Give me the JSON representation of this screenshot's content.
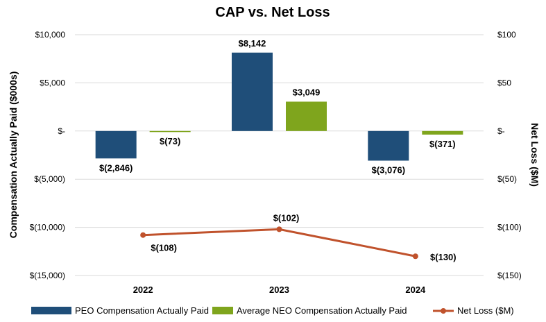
{
  "chart_data": {
    "type": "bar",
    "title": "CAP vs. Net Loss",
    "categories": [
      "2022",
      "2023",
      "2024"
    ],
    "series": [
      {
        "name": "PEO Compensation Actually Paid",
        "color": "#1f4e79",
        "axis": "left",
        "values": [
          -2846,
          8142,
          -3076
        ],
        "labels": [
          "$(2,846)",
          "$8,142",
          "$(3,076)"
        ]
      },
      {
        "name": "Average NEO Compensation Actually Paid",
        "color": "#7fa51d",
        "axis": "left",
        "values": [
          -73,
          3049,
          -371
        ],
        "labels": [
          "$(73)",
          "$3,049",
          "$(371)"
        ]
      }
    ],
    "line_series": {
      "name": "Net Loss ($M)",
      "color": "#c0522c",
      "axis": "right",
      "values": [
        -108,
        -102,
        -130
      ],
      "labels": [
        "$(108)",
        "$(102)",
        "$(130)"
      ]
    },
    "left_axis": {
      "label": "Compensation Actually Paid ($000s)",
      "range": [
        -15000,
        10000
      ],
      "ticks": [
        10000,
        5000,
        0,
        -5000,
        -10000,
        -15000
      ],
      "tick_labels": [
        "$10,000",
        "$5,000",
        "$-",
        "$(5,000)",
        "$(10,000)",
        "$(15,000)"
      ]
    },
    "right_axis": {
      "label": "Net Loss ($M)",
      "range": [
        -150,
        100
      ],
      "ticks": [
        100,
        50,
        0,
        -50,
        -100,
        -150
      ],
      "tick_labels": [
        "$100",
        "$50",
        "$-",
        "$(50)",
        "$(100)",
        "$(150)"
      ]
    },
    "grid": "horizontal",
    "legend_position": "bottom"
  }
}
